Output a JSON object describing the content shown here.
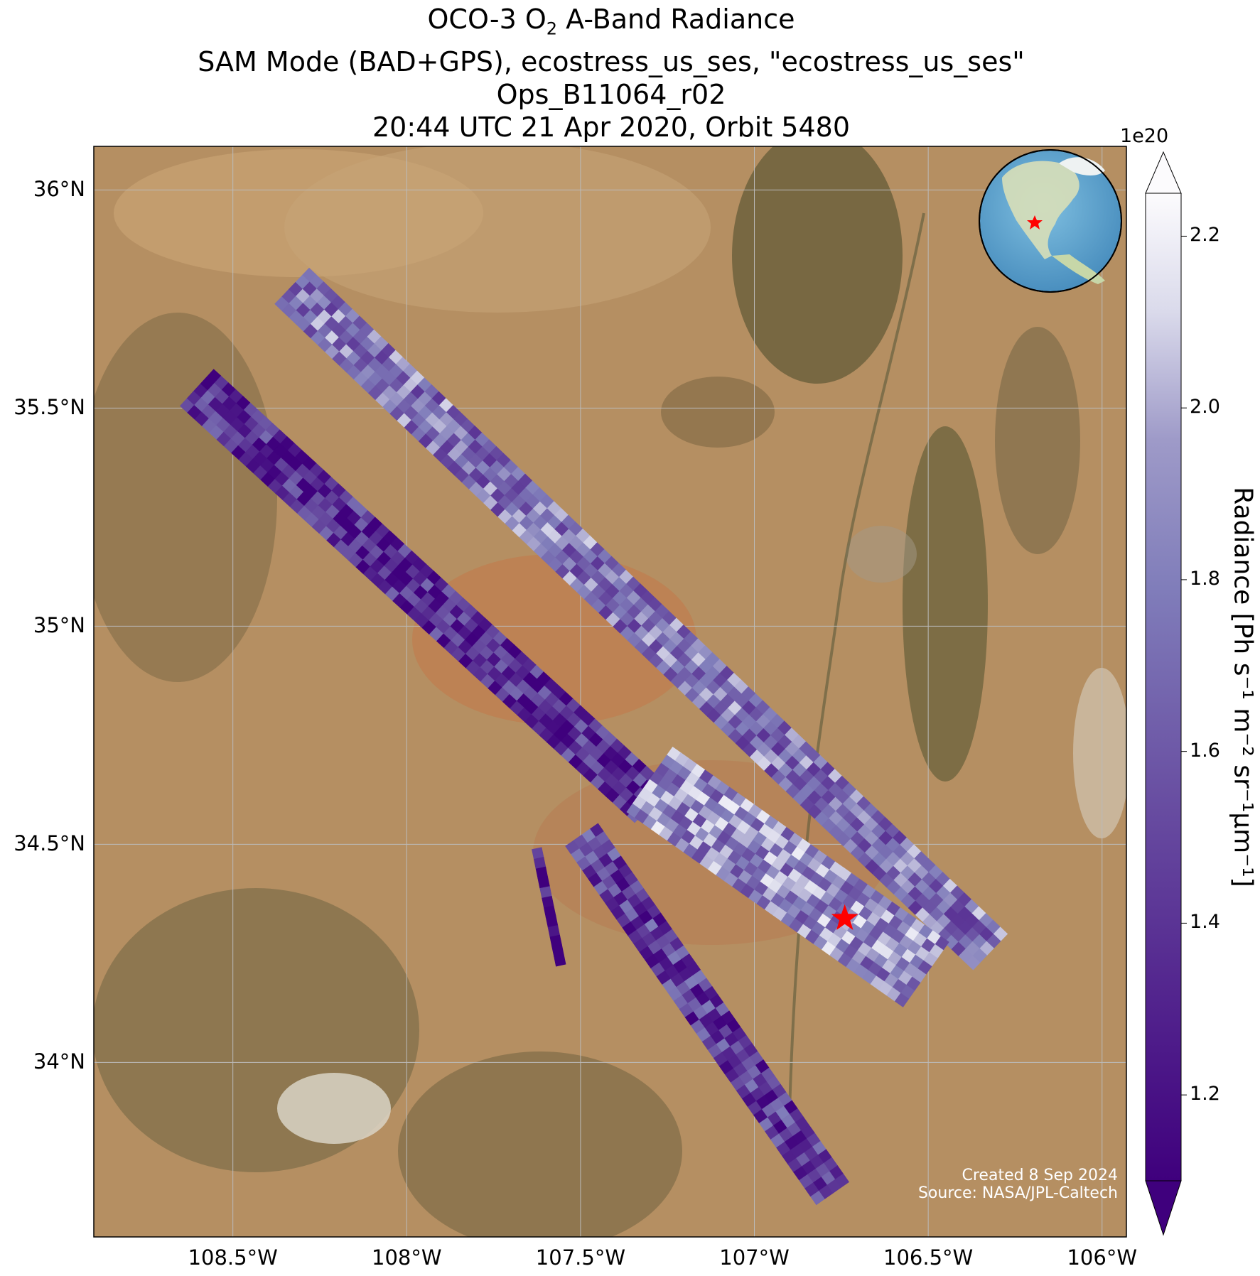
{
  "title": {
    "line1_pre": "OCO-3 O",
    "line1_sub": "2",
    "line1_post": " A-Band Radiance",
    "line2": "SAM Mode (BAD+GPS), ecostress_us_ses, \"ecostress_us_ses\"",
    "line3": "Ops_B11064_r02",
    "line4": "20:44 UTC 21 Apr 2020, Orbit 5480"
  },
  "axes": {
    "lat_labels": [
      "36°N",
      "35.5°N",
      "35°N",
      "34.5°N",
      "34°N"
    ],
    "lat_values": [
      36.0,
      35.5,
      35.0,
      34.5,
      34.0
    ],
    "lon_labels": [
      "108.5°W",
      "108°W",
      "107.5°W",
      "107°W",
      "106.5°W",
      "106°W"
    ],
    "lon_values": [
      -108.5,
      -108.0,
      -107.5,
      -107.0,
      -106.5,
      -106.0
    ],
    "lon_range": [
      -108.9,
      -105.93
    ],
    "lat_range": [
      33.6,
      36.1
    ],
    "gridlines": true
  },
  "colorbar": {
    "label": "Radiance [Ph s⁻¹ m⁻² sr⁻¹μm⁻¹]",
    "exponent": "1e20",
    "ticks": [
      "1.2",
      "1.4",
      "1.6",
      "1.8",
      "2.0",
      "2.2"
    ],
    "tick_values": [
      1.2,
      1.4,
      1.6,
      1.8,
      2.0,
      2.2
    ],
    "vmin": 1.1,
    "vmax": 2.25,
    "colormap": "Purples_r",
    "extend": "both"
  },
  "target": {
    "marker": "red-star",
    "lon": -106.74,
    "lat": 34.33,
    "color": "#ff0000"
  },
  "inset": {
    "type": "globe",
    "marker": "red-star"
  },
  "credit": {
    "line1": "Created 8 Sep 2024",
    "line2": "Source: NASA/JPL-Caltech"
  },
  "chart_data": {
    "type": "heatmap",
    "variable": "O2 A-Band Radiance",
    "swaths": [
      {
        "name": "swath-1",
        "start": [
          -108.33,
          35.78
        ],
        "end": [
          -106.33,
          34.26
        ],
        "mean": 1.75
      },
      {
        "name": "swath-2",
        "start": [
          -108.6,
          35.55
        ],
        "end": [
          -107.3,
          34.6
        ],
        "mean": 1.35
      },
      {
        "name": "swath-3",
        "start": [
          -107.3,
          34.65
        ],
        "end": [
          -106.5,
          34.2
        ],
        "mean": 1.85
      },
      {
        "name": "swath-4",
        "start": [
          -107.5,
          34.52
        ],
        "end": [
          -106.78,
          33.7
        ],
        "mean": 1.45
      },
      {
        "name": "swath-5",
        "start": [
          -107.63,
          34.49
        ],
        "end": [
          -107.56,
          34.22
        ],
        "mean": 1.15
      }
    ]
  }
}
